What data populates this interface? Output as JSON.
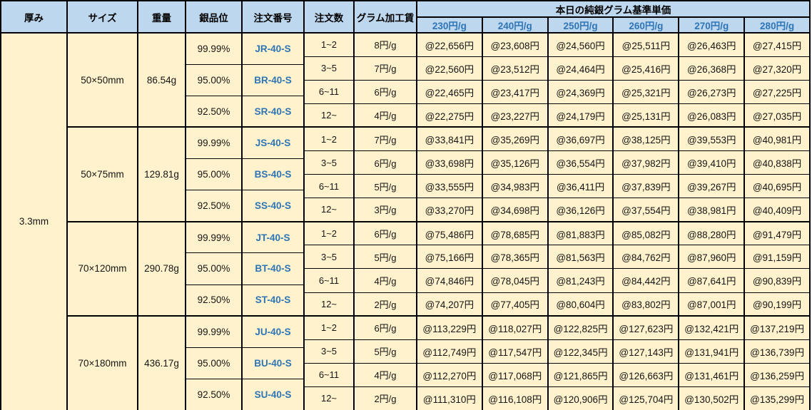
{
  "columns": {
    "thickness": "厚み",
    "size": "サイズ",
    "weight": "重量",
    "purity": "銀品位",
    "order_number": "注文番号",
    "order_qty": "注文数",
    "fee": "グラム加工賃"
  },
  "price_header": {
    "title": "本日の純銀グラム基準単価",
    "rates": [
      "230円/g",
      "240円/g",
      "250円/g",
      "260円/g",
      "270円/g",
      "280円/g"
    ]
  },
  "thickness": "3.3mm",
  "colors": {
    "header_bg": "#BDD7EE",
    "body_bg": "#FFF2CC",
    "accent_blue": "#2E75B6",
    "border": "#000000"
  },
  "blocks": [
    {
      "size": "50×50mm",
      "weight": "86.54g",
      "purities": [
        {
          "grade": "99.99%",
          "order_number": "JR-40-S"
        },
        {
          "grade": "95.00%",
          "order_number": "BR-40-S"
        },
        {
          "grade": "92.50%",
          "order_number": "SR-40-S"
        }
      ],
      "rows": [
        {
          "qty": "1~2",
          "fee": "8円/g",
          "prices": [
            "@22,656円",
            "@23,608円",
            "@24,560円",
            "@25,511円",
            "@26,463円",
            "@27,415円"
          ]
        },
        {
          "qty": "3~5",
          "fee": "7円/g",
          "prices": [
            "@22,560円",
            "@23,512円",
            "@24,464円",
            "@25,416円",
            "@26,368円",
            "@27,320円"
          ]
        },
        {
          "qty": "6~11",
          "fee": "6円/g",
          "prices": [
            "@22,465円",
            "@23,417円",
            "@24,369円",
            "@25,321円",
            "@26,273円",
            "@27,225円"
          ]
        },
        {
          "qty": "12~",
          "fee": "4円/g",
          "prices": [
            "@22,275円",
            "@23,227円",
            "@24,179円",
            "@25,131円",
            "@26,083円",
            "@27,035円"
          ]
        }
      ]
    },
    {
      "size": "50×75mm",
      "weight": "129.81g",
      "purities": [
        {
          "grade": "99.99%",
          "order_number": "JS-40-S"
        },
        {
          "grade": "95.00%",
          "order_number": "BS-40-S"
        },
        {
          "grade": "92.50%",
          "order_number": "SS-40-S"
        }
      ],
      "rows": [
        {
          "qty": "1~2",
          "fee": "7円/g",
          "prices": [
            "@33,841円",
            "@35,269円",
            "@36,697円",
            "@38,125円",
            "@39,553円",
            "@40,981円"
          ]
        },
        {
          "qty": "3~5",
          "fee": "6円/g",
          "prices": [
            "@33,698円",
            "@35,126円",
            "@36,554円",
            "@37,982円",
            "@39,410円",
            "@40,838円"
          ]
        },
        {
          "qty": "6~11",
          "fee": "5円/g",
          "prices": [
            "@33,555円",
            "@34,983円",
            "@36,411円",
            "@37,839円",
            "@39,267円",
            "@40,695円"
          ]
        },
        {
          "qty": "12~",
          "fee": "3円/g",
          "prices": [
            "@33,270円",
            "@34,698円",
            "@36,126円",
            "@37,554円",
            "@38,981円",
            "@40,409円"
          ]
        }
      ]
    },
    {
      "size": "70×120mm",
      "weight": "290.78g",
      "purities": [
        {
          "grade": "99.99%",
          "order_number": "JT-40-S"
        },
        {
          "grade": "95.00%",
          "order_number": "BT-40-S"
        },
        {
          "grade": "92.50%",
          "order_number": "ST-40-S"
        }
      ],
      "rows": [
        {
          "qty": "1~2",
          "fee": "6円/g",
          "prices": [
            "@75,486円",
            "@78,685円",
            "@81,883円",
            "@85,082円",
            "@88,280円",
            "@91,479円"
          ]
        },
        {
          "qty": "3~5",
          "fee": "5円/g",
          "prices": [
            "@75,166円",
            "@78,365円",
            "@81,563円",
            "@84,762円",
            "@87,960円",
            "@91,159円"
          ]
        },
        {
          "qty": "6~11",
          "fee": "4円/g",
          "prices": [
            "@74,846円",
            "@78,045円",
            "@81,243円",
            "@84,442円",
            "@87,641円",
            "@90,839円"
          ]
        },
        {
          "qty": "12~",
          "fee": "2円/g",
          "prices": [
            "@74,207円",
            "@77,405円",
            "@80,604円",
            "@83,802円",
            "@87,001円",
            "@90,199円"
          ]
        }
      ]
    },
    {
      "size": "70×180mm",
      "weight": "436.17g",
      "purities": [
        {
          "grade": "99.99%",
          "order_number": "JU-40-S"
        },
        {
          "grade": "95.00%",
          "order_number": "BU-40-S"
        },
        {
          "grade": "92.50%",
          "order_number": "SU-40-S"
        }
      ],
      "rows": [
        {
          "qty": "1~2",
          "fee": "6円/g",
          "prices": [
            "@113,229円",
            "@118,027円",
            "@122,825円",
            "@127,623円",
            "@132,421円",
            "@137,219円"
          ]
        },
        {
          "qty": "3~5",
          "fee": "5円/g",
          "prices": [
            "@112,749円",
            "@117,547円",
            "@122,345円",
            "@127,143円",
            "@131,941円",
            "@136,739円"
          ]
        },
        {
          "qty": "6~11",
          "fee": "4円/g",
          "prices": [
            "@112,270円",
            "@117,068円",
            "@121,865円",
            "@126,663円",
            "@131,461円",
            "@136,259円"
          ]
        },
        {
          "qty": "12~",
          "fee": "2円/g",
          "prices": [
            "@111,310円",
            "@116,108円",
            "@120,906円",
            "@125,704円",
            "@130,502円",
            "@135,299円"
          ]
        }
      ]
    }
  ]
}
